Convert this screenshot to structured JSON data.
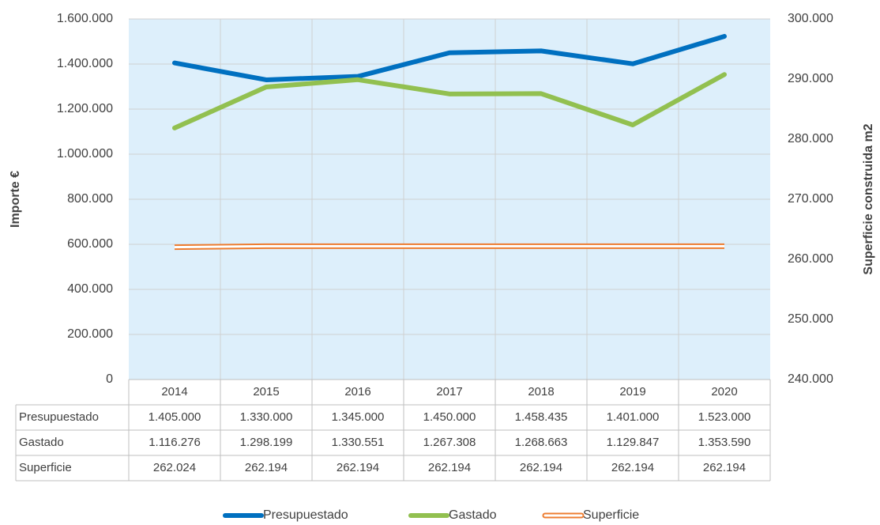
{
  "chart_data": {
    "type": "line",
    "categories": [
      "2014",
      "2015",
      "2016",
      "2017",
      "2018",
      "2019",
      "2020"
    ],
    "series": [
      {
        "name": "Presupuestado",
        "color": "#0070c0",
        "values": [
          1405000,
          1330000,
          1345000,
          1450000,
          1458435,
          1401000,
          1523000
        ],
        "value_labels": [
          "1.405.000",
          "1.330.000",
          "1.345.000",
          "1.450.000",
          "1.458.435",
          "1.401.000",
          "1.523.000"
        ]
      },
      {
        "name": "Gastado",
        "color": "#92c050",
        "values": [
          1116276,
          1298199,
          1330551,
          1267308,
          1268663,
          1129847,
          1353590
        ],
        "value_labels": [
          "1.116.276",
          "1.298.199",
          "1.330.551",
          "1.267.308",
          "1.268.663",
          "1.129.847",
          "1.353.590"
        ]
      },
      {
        "name": "Superficie",
        "color": "#ed7d31",
        "axis": "y2",
        "values": [
          262024,
          262194,
          262194,
          262194,
          262194,
          262194,
          262194
        ],
        "value_labels": [
          "262.024",
          "262.194",
          "262.194",
          "262.194",
          "262.194",
          "262.194",
          "262.194"
        ]
      }
    ],
    "y_label": "Importe €",
    "y2_label": "Superficie construida m2",
    "ylim": [
      0,
      1600000
    ],
    "yticks": [
      0,
      {
        "value": 200000,
        "label": "200.000"
      },
      {
        "value": 400000,
        "label": "400.000"
      },
      {
        "value": 600000,
        "label": "600.000"
      },
      {
        "value": 800000,
        "label": "800.000"
      },
      {
        "value": 1000000,
        "label": "1.000.000"
      },
      {
        "value": 1200000,
        "label": "1.200.000"
      },
      {
        "value": 1400000,
        "label": "1.400.000"
      },
      {
        "value": 1600000,
        "label": "1.600.000"
      }
    ],
    "y2lim": [
      240000,
      300000
    ],
    "y2ticks": [
      {
        "value": 240000,
        "label": "240.000"
      },
      {
        "value": 250000,
        "label": "250.000"
      },
      {
        "value": 260000,
        "label": "260.000"
      },
      {
        "value": 270000,
        "label": "270.000"
      },
      {
        "value": 280000,
        "label": "280.000"
      },
      {
        "value": 290000,
        "label": "290.000"
      },
      {
        "value": 300000,
        "label": "300.000"
      }
    ],
    "grid": true,
    "legend": "bottom",
    "background": "#ddeffb"
  }
}
